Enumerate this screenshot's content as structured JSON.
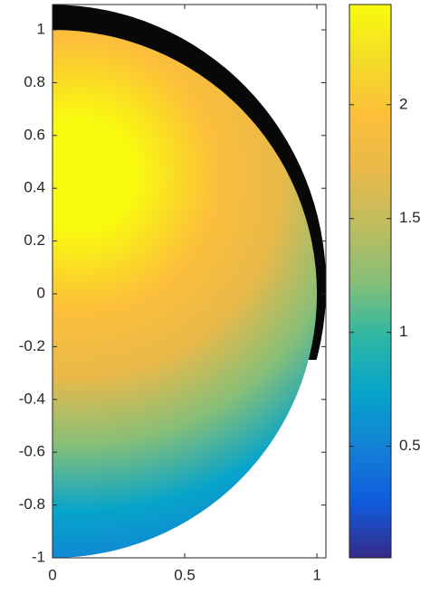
{
  "chart_data": {
    "type": "surface",
    "xlim": [
      0,
      1.034
    ],
    "xticks": [
      0,
      0.5,
      1
    ],
    "ylim": [
      -1,
      1.096
    ],
    "yticks": [
      -1,
      -0.8,
      -0.6,
      -0.4,
      -0.2,
      0,
      0.2,
      0.4,
      0.6,
      0.8,
      1
    ],
    "colormap": "parula",
    "clim": [
      0.01,
      2.44
    ],
    "cticks": [
      0.5,
      1,
      1.5,
      2
    ]
  }
}
